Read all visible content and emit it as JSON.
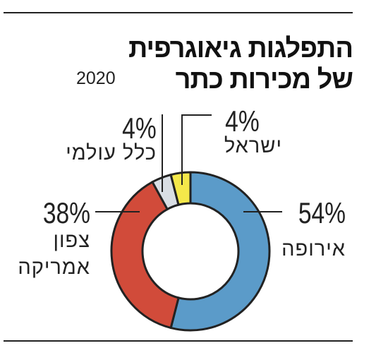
{
  "title": [
    "התפלגות גיאוגרפית",
    "של מכירות כתר"
  ],
  "subtitle": "2020",
  "chart_data": {
    "type": "pie",
    "categories": [
      "אירופה",
      "צפון אמריקה",
      "כלל עולמי",
      "ישראל"
    ],
    "values": [
      54,
      38,
      4,
      4
    ],
    "value_labels": [
      "54%",
      "38%",
      "4%",
      "4%"
    ],
    "colors": [
      "#5b9bc9",
      "#d14b3a",
      "#d9dee4",
      "#f4e84a"
    ]
  }
}
